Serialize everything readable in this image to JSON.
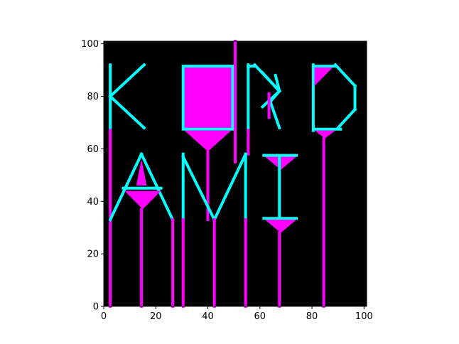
{
  "chart_data": {
    "type": "heatmap",
    "xlim": [
      0,
      101
    ],
    "ylim": [
      0,
      101
    ],
    "x_ticks": [
      0,
      20,
      40,
      60,
      80,
      100
    ],
    "y_ticks": [
      0,
      20,
      40,
      60,
      80,
      100
    ],
    "x_tick_labels": [
      "0",
      "20",
      "40",
      "60",
      "80",
      "100"
    ],
    "y_tick_labels": [
      "0",
      "20",
      "40",
      "60",
      "80",
      "100"
    ],
    "grid": false,
    "background": "#000000",
    "colors": {
      "cyan": "#00ffff",
      "magenta": "#ff00ff"
    },
    "shapes": [
      {
        "id": "k-stem",
        "kind": "line",
        "color": "cyan",
        "points": [
          [
            2.5,
            92
          ],
          [
            2.5,
            67
          ]
        ]
      },
      {
        "id": "k-arm-upper",
        "kind": "line",
        "color": "cyan",
        "points": [
          [
            2.5,
            80
          ],
          [
            15.5,
            92
          ]
        ]
      },
      {
        "id": "k-arm-lower",
        "kind": "line",
        "color": "cyan",
        "points": [
          [
            2.5,
            80
          ],
          [
            15.5,
            68
          ]
        ]
      },
      {
        "id": "k-tail",
        "kind": "line",
        "color": "magenta",
        "points": [
          [
            2.5,
            67
          ],
          [
            2.5,
            0
          ]
        ]
      },
      {
        "id": "box-fill",
        "kind": "rect",
        "color": "magenta",
        "x0": 31,
        "y0": 68,
        "x1": 49,
        "y1": 91
      },
      {
        "id": "box-outline",
        "kind": "outline",
        "color": "cyan",
        "x0": 30.5,
        "y0": 67.5,
        "x1": 49.5,
        "y1": 91.5
      },
      {
        "id": "box-funnel",
        "kind": "poly",
        "color": "magenta",
        "points": [
          [
            31,
            67
          ],
          [
            49,
            67
          ],
          [
            40,
            59
          ]
        ]
      },
      {
        "id": "box-stem",
        "kind": "line",
        "color": "magenta",
        "points": [
          [
            40,
            59
          ],
          [
            40,
            33
          ]
        ]
      },
      {
        "id": "tall-line",
        "kind": "line",
        "color": "magenta",
        "points": [
          [
            50.5,
            101
          ],
          [
            50.5,
            55
          ]
        ]
      },
      {
        "id": "r-stem",
        "kind": "line",
        "color": "cyan",
        "points": [
          [
            55.5,
            92
          ],
          [
            55.5,
            67
          ]
        ]
      },
      {
        "id": "r-top",
        "kind": "line",
        "color": "cyan",
        "points": [
          [
            55.5,
            91.5
          ],
          [
            58,
            91.5
          ]
        ]
      },
      {
        "id": "r-diag-1",
        "kind": "line",
        "color": "cyan",
        "points": [
          [
            58,
            92
          ],
          [
            67.5,
            82
          ]
        ]
      },
      {
        "id": "r-diag-2",
        "kind": "line",
        "color": "cyan",
        "points": [
          [
            67.5,
            82
          ],
          [
            64,
            78
          ]
        ]
      },
      {
        "id": "r-leg",
        "kind": "line",
        "color": "cyan",
        "points": [
          [
            64,
            78
          ],
          [
            67.5,
            68
          ]
        ]
      },
      {
        "id": "r-x-1",
        "kind": "line",
        "color": "cyan",
        "points": [
          [
            61,
            89
          ],
          [
            67.5,
            82
          ]
        ]
      },
      {
        "id": "r-x-2",
        "kind": "line",
        "color": "cyan",
        "points": [
          [
            61,
            76
          ],
          [
            67.5,
            82
          ]
        ]
      },
      {
        "id": "r-x-3",
        "kind": "line",
        "color": "cyan",
        "points": [
          [
            67.5,
            82
          ],
          [
            66,
            88
          ]
        ]
      },
      {
        "id": "r-inner",
        "kind": "line",
        "color": "magenta",
        "points": [
          [
            63.5,
            81
          ],
          [
            63.5,
            72
          ]
        ]
      },
      {
        "id": "r-tail",
        "kind": "line",
        "color": "magenta",
        "points": [
          [
            55.5,
            67
          ],
          [
            55.5,
            58
          ]
        ]
      },
      {
        "id": "d-stem",
        "kind": "line",
        "color": "cyan",
        "points": [
          [
            80.5,
            92
          ],
          [
            80.5,
            67
          ]
        ]
      },
      {
        "id": "d-top",
        "kind": "line",
        "color": "cyan",
        "points": [
          [
            80.5,
            91.5
          ],
          [
            89,
            91.5
          ]
        ]
      },
      {
        "id": "d-bottom",
        "kind": "line",
        "color": "cyan",
        "points": [
          [
            80.5,
            67.5
          ],
          [
            91,
            67.5
          ]
        ]
      },
      {
        "id": "d-curve-top",
        "kind": "line",
        "color": "cyan",
        "points": [
          [
            89,
            92
          ],
          [
            96.5,
            84
          ]
        ]
      },
      {
        "id": "d-right",
        "kind": "line",
        "color": "cyan",
        "points": [
          [
            96.5,
            84
          ],
          [
            96.5,
            75
          ]
        ]
      },
      {
        "id": "d-curve-bottom",
        "kind": "line",
        "color": "cyan",
        "points": [
          [
            96.5,
            75
          ],
          [
            90,
            68
          ]
        ]
      },
      {
        "id": "d-fill",
        "kind": "poly",
        "color": "magenta",
        "points": [
          [
            81,
            91
          ],
          [
            88,
            91
          ],
          [
            81,
            84
          ]
        ]
      },
      {
        "id": "d-funnel",
        "kind": "poly",
        "color": "magenta",
        "points": [
          [
            81,
            67
          ],
          [
            89,
            67
          ],
          [
            85,
            64
          ]
        ]
      },
      {
        "id": "d-stem-lower",
        "kind": "line",
        "color": "magenta",
        "points": [
          [
            84.5,
            64
          ],
          [
            84.5,
            0
          ]
        ]
      },
      {
        "id": "a-left-leg",
        "kind": "line",
        "color": "cyan",
        "points": [
          [
            2.5,
            33
          ],
          [
            14.5,
            58
          ]
        ]
      },
      {
        "id": "a-right-leg",
        "kind": "line",
        "color": "cyan",
        "points": [
          [
            14.5,
            58
          ],
          [
            26.5,
            33
          ]
        ]
      },
      {
        "id": "a-bar",
        "kind": "line",
        "color": "cyan",
        "points": [
          [
            7.5,
            45
          ],
          [
            22,
            45
          ]
        ]
      },
      {
        "id": "a-inner",
        "kind": "poly",
        "color": "magenta",
        "points": [
          [
            14.5,
            56
          ],
          [
            12.5,
            46
          ],
          [
            16.5,
            46
          ]
        ]
      },
      {
        "id": "a-funnel",
        "kind": "poly",
        "color": "magenta",
        "points": [
          [
            8,
            44
          ],
          [
            22,
            44
          ],
          [
            15,
            37
          ]
        ]
      },
      {
        "id": "a-stem",
        "kind": "line",
        "color": "magenta",
        "points": [
          [
            14.5,
            37
          ],
          [
            14.5,
            0
          ]
        ]
      },
      {
        "id": "a-right-tail",
        "kind": "line",
        "color": "magenta",
        "points": [
          [
            26.5,
            33
          ],
          [
            26.5,
            0
          ]
        ]
      },
      {
        "id": "a-left-tail",
        "kind": "line",
        "color": "magenta",
        "points": [
          [
            2.5,
            67
          ],
          [
            2.5,
            37
          ]
        ]
      },
      {
        "id": "m-left",
        "kind": "line",
        "color": "cyan",
        "points": [
          [
            30.5,
            58
          ],
          [
            30.5,
            33
          ]
        ]
      },
      {
        "id": "m-diag-1",
        "kind": "line",
        "color": "cyan",
        "points": [
          [
            30.5,
            57
          ],
          [
            42.5,
            33
          ]
        ]
      },
      {
        "id": "m-diag-2",
        "kind": "line",
        "color": "cyan",
        "points": [
          [
            42.5,
            33
          ],
          [
            54.5,
            58
          ]
        ]
      },
      {
        "id": "m-right",
        "kind": "line",
        "color": "cyan",
        "points": [
          [
            54.5,
            58
          ],
          [
            54.5,
            33
          ]
        ]
      },
      {
        "id": "m-left-tail",
        "kind": "line",
        "color": "magenta",
        "points": [
          [
            30.5,
            33
          ],
          [
            30.5,
            0
          ]
        ]
      },
      {
        "id": "m-mid-tail",
        "kind": "line",
        "color": "magenta",
        "points": [
          [
            42.5,
            33
          ],
          [
            42.5,
            0
          ]
        ]
      },
      {
        "id": "m-right-tail",
        "kind": "line",
        "color": "magenta",
        "points": [
          [
            54.5,
            33
          ],
          [
            54.5,
            0
          ]
        ]
      },
      {
        "id": "i-top-funnel",
        "kind": "poly",
        "color": "magenta",
        "points": [
          [
            62,
            57
          ],
          [
            74,
            57
          ],
          [
            68,
            52
          ]
        ]
      },
      {
        "id": "i-top-bar",
        "kind": "line",
        "color": "cyan",
        "points": [
          [
            61.5,
            57.5
          ],
          [
            74,
            57.5
          ]
        ]
      },
      {
        "id": "i-stem",
        "kind": "line",
        "color": "cyan",
        "points": [
          [
            67.5,
            57
          ],
          [
            67.5,
            34
          ]
        ]
      },
      {
        "id": "i-bottom-bar",
        "kind": "line",
        "color": "cyan",
        "points": [
          [
            61.5,
            33.5
          ],
          [
            74,
            33.5
          ]
        ]
      },
      {
        "id": "i-bottom-funnel",
        "kind": "poly",
        "color": "magenta",
        "points": [
          [
            62,
            33
          ],
          [
            74,
            33
          ],
          [
            68,
            28
          ]
        ]
      },
      {
        "id": "i-tail",
        "kind": "line",
        "color": "magenta",
        "points": [
          [
            67.5,
            28
          ],
          [
            67.5,
            0
          ]
        ]
      }
    ]
  }
}
